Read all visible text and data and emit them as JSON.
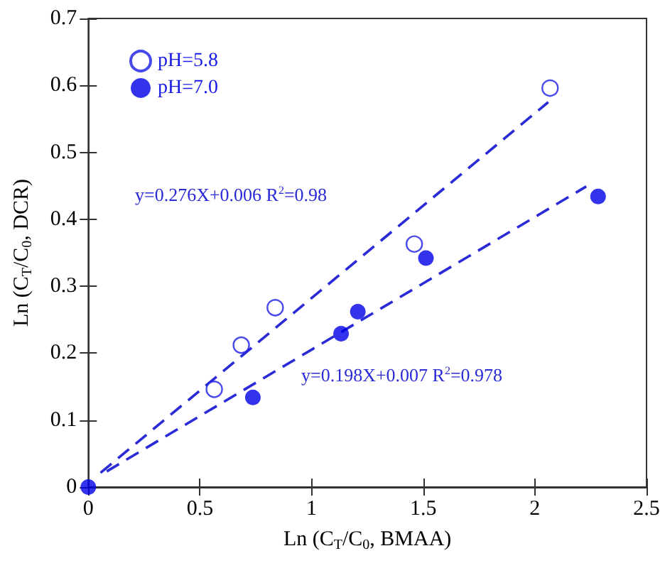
{
  "chart_data": {
    "type": "scatter",
    "xlabel": "Ln (C$_{T}$/C$_{0}$, BMAA)",
    "ylabel": "Ln (C$_{T}$/C$_{0}$, DCR)",
    "xlim": [
      0,
      2.5
    ],
    "xticks": [
      0,
      0.5,
      1,
      1.5,
      2,
      2.5
    ],
    "ylim": [
      0,
      0.7
    ],
    "yticks": [
      0,
      0.1,
      0.2,
      0.3,
      0.4,
      0.5,
      0.6,
      0.7
    ],
    "series": [
      {
        "name": "pH=5.8",
        "color": "#1a1ae6",
        "marker": "open circle",
        "x": [
          0.564,
          0.685,
          0.837,
          1.46,
          2.068
        ],
        "values": [
          0.146,
          0.212,
          0.268,
          0.363,
          0.596
        ]
      },
      {
        "name": "pH=7.0",
        "color": "#0000e6",
        "x": [
          0,
          0.737,
          1.132,
          1.207,
          1.512,
          2.283
        ],
        "values": [
          0,
          0.134,
          0.229,
          0.262,
          0.342,
          0.434
        ]
      },
      {
        "type": "line",
        "color": "#2a2ad6",
        "line_style": "dashed",
        "marker": "none",
        "x": [
          0.05,
          2.06
        ],
        "values": [
          0.02,
          0.575
        ]
      },
      {
        "type": "line",
        "color": "#2a2ad6",
        "line_style": "dashed",
        "marker": "none",
        "x": [
          0.05,
          2.23
        ],
        "values": [
          0.017,
          0.449
        ]
      }
    ],
    "annotations": [
      "y=0.276X+0.006 R$^{2}$=0.98",
      "y=0.198X+0.007 R$^{2}$=0.978"
    ],
    "marker": "circle",
    "legend": "top left",
    "grid": false
  }
}
